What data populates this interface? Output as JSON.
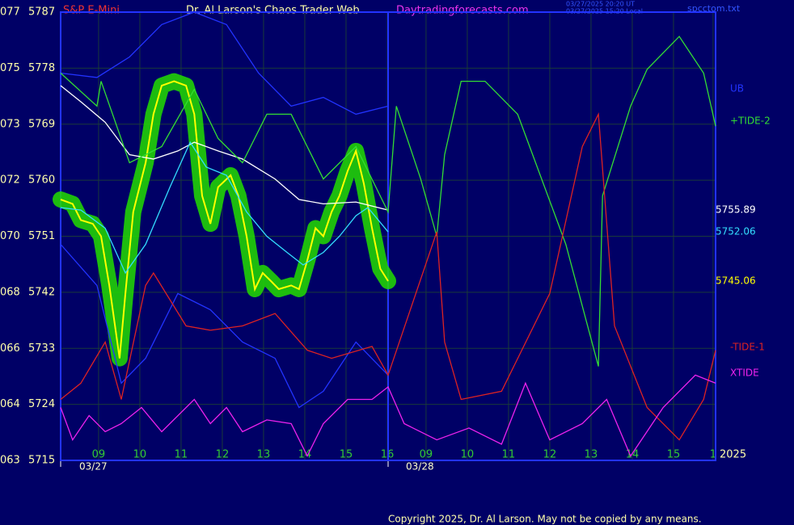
{
  "chart_data": {
    "type": "line",
    "header": {
      "symbol": "S&P E-Mini",
      "title": "Dr. Al Larson's Chaos Trader Web",
      "site": "Daytradingforecasts.com",
      "time_ut": "03/27/2025 20:20 UT",
      "time_local": "03/27/2025 15:20 Local",
      "file": "spcctom.txt"
    },
    "footer": "Copyright 2025, Dr. Al Larson. May not be copied by any means.",
    "year_label": "2025",
    "date_labels": [
      "03/27",
      "03/28"
    ],
    "xlim": [
      0,
      15.88
    ],
    "ylim": [
      5715,
      5787
    ],
    "yticks": [
      5787,
      5778,
      5769,
      5760,
      5751,
      5742,
      5733,
      5724,
      5715
    ],
    "ytick_codes": [
      "077",
      "075",
      "073",
      "072",
      "070",
      "068",
      "066",
      "064",
      "063"
    ],
    "xticks": [
      {
        "value": 0.92,
        "label": "09"
      },
      {
        "value": 1.92,
        "label": "10"
      },
      {
        "value": 2.92,
        "label": "11"
      },
      {
        "value": 3.92,
        "label": "12"
      },
      {
        "value": 4.92,
        "label": "13"
      },
      {
        "value": 5.92,
        "label": "14"
      },
      {
        "value": 6.92,
        "label": "15"
      },
      {
        "value": 7.92,
        "label": "16"
      },
      {
        "value": 8.86,
        "label": "09"
      },
      {
        "value": 9.86,
        "label": "10"
      },
      {
        "value": 10.86,
        "label": "11"
      },
      {
        "value": 11.86,
        "label": "12"
      },
      {
        "value": 12.86,
        "label": "13"
      },
      {
        "value": 13.86,
        "label": "14"
      },
      {
        "value": 14.86,
        "label": "15"
      },
      {
        "value": 15.82,
        "label": "1"
      }
    ],
    "grid": true,
    "series": [
      {
        "color": "#ffff00",
        "glow": "#22dd00",
        "last_label": "5745.06",
        "x": [
          0,
          0.29,
          0.49,
          0.78,
          0.98,
          1.18,
          1.43,
          1.57,
          1.76,
          2.06,
          2.25,
          2.45,
          2.75,
          3.04,
          3.24,
          3.43,
          3.63,
          3.82,
          4.12,
          4.31,
          4.51,
          4.71,
          4.9,
          5.1,
          5.29,
          5.59,
          5.78,
          5.98,
          6.18,
          6.37,
          6.57,
          6.76,
          6.96,
          7.16,
          7.35,
          7.55,
          7.75,
          7.94
        ],
        "values": [
          5756.9,
          5756.2,
          5753.6,
          5753.0,
          5751.0,
          5743.1,
          5731.4,
          5741.8,
          5754.9,
          5762.8,
          5770.6,
          5775.2,
          5775.9,
          5775.2,
          5770.6,
          5757.5,
          5753.0,
          5758.9,
          5760.8,
          5757.5,
          5751.0,
          5742.5,
          5745.1,
          5743.8,
          5742.5,
          5743.1,
          5742.5,
          5747.1,
          5752.3,
          5751.0,
          5754.9,
          5757.5,
          5761.5,
          5764.7,
          5759.5,
          5752.3,
          5745.8,
          5743.8
        ]
      },
      {
        "color": "#ffffff",
        "last_label": "5755.89",
        "x": [
          0,
          0.49,
          1.08,
          1.67,
          2.25,
          2.84,
          3.24,
          3.82,
          4.41,
          5.2,
          5.78,
          6.37,
          7.16,
          7.94
        ],
        "values": [
          5775.2,
          5772.6,
          5769.3,
          5764.1,
          5763.4,
          5764.7,
          5766.1,
          5764.7,
          5763.4,
          5760.2,
          5756.9,
          5756.2,
          5756.5,
          5755.2
        ]
      },
      {
        "color": "#33ddff",
        "last_label": "5752.06",
        "x": [
          0,
          0.49,
          1.08,
          1.57,
          2.06,
          2.65,
          3.14,
          3.53,
          4.02,
          4.51,
          5.0,
          5.49,
          5.88,
          6.37,
          6.76,
          7.16,
          7.45,
          7.94
        ],
        "values": [
          5755.6,
          5755.2,
          5752.3,
          5745.1,
          5749.7,
          5758.9,
          5766.1,
          5762.1,
          5760.8,
          5754.9,
          5751.0,
          5748.4,
          5746.4,
          5748.4,
          5751.0,
          5754.3,
          5755.6,
          5751.7
        ]
      },
      {
        "name": "UB",
        "color": "#2233ff",
        "x": [
          0,
          0.88,
          1.67,
          2.45,
          3.24,
          4.02,
          4.8,
          5.59,
          6.37,
          7.16,
          7.94
        ],
        "values": [
          5777.2,
          5776.5,
          5779.8,
          5785.0,
          5787.0,
          5785.0,
          5777.2,
          5771.9,
          5773.3,
          5770.6,
          5771.9
        ]
      },
      {
        "color": "#2233ff",
        "x": [
          0,
          0.88,
          1.47,
          2.06,
          2.84,
          3.63,
          4.41,
          5.2,
          5.78,
          6.37,
          7.16,
          7.94
        ],
        "values": [
          5749.7,
          5743.1,
          5727.4,
          5731.4,
          5741.8,
          5739.2,
          5734.0,
          5731.4,
          5723.5,
          5726.1,
          5734.0,
          5728.7
        ]
      },
      {
        "name": "+TIDE-2",
        "color": "#33dd33",
        "x": [
          0,
          0.88,
          0.98,
          1.67,
          2.45,
          3.24,
          3.82,
          4.41,
          5.0,
          5.59,
          6.37,
          7.16,
          7.94,
          8.14,
          8.73,
          9.12,
          9.31,
          9.71,
          10.29,
          11.08,
          12.25,
          13.04,
          13.14,
          13.82,
          14.22,
          15.0,
          15.59,
          15.88
        ],
        "values": [
          5777.2,
          5771.9,
          5775.9,
          5762.8,
          5765.4,
          5774.6,
          5766.7,
          5762.8,
          5770.6,
          5770.6,
          5760.2,
          5765.4,
          5754.9,
          5771.9,
          5760.2,
          5751.0,
          5764.1,
          5775.9,
          5775.9,
          5770.6,
          5749.7,
          5730.1,
          5757.5,
          5771.9,
          5777.8,
          5783.1,
          5777.2,
          5768.7
        ]
      },
      {
        "name": "-TIDE-1",
        "color": "#dd2222",
        "x": [
          0,
          0.49,
          1.08,
          1.47,
          2.06,
          2.25,
          3.04,
          3.63,
          4.41,
          5.2,
          5.98,
          6.57,
          7.55,
          7.94,
          9.12,
          9.31,
          9.71,
          10.69,
          11.86,
          12.65,
          13.04,
          13.43,
          14.22,
          15.0,
          15.59,
          15.88
        ],
        "values": [
          5724.8,
          5727.4,
          5734.0,
          5724.8,
          5743.1,
          5745.1,
          5736.6,
          5735.9,
          5736.6,
          5738.6,
          5732.7,
          5731.4,
          5733.3,
          5728.7,
          5751.7,
          5734.0,
          5724.8,
          5726.1,
          5741.8,
          5765.4,
          5770.6,
          5736.6,
          5723.5,
          5718.3,
          5724.8,
          5732.7
        ]
      },
      {
        "name": "XTIDE",
        "color": "#ee22ee",
        "x": [
          0,
          0.29,
          0.69,
          1.08,
          1.47,
          1.96,
          2.45,
          3.24,
          3.63,
          4.02,
          4.41,
          5.0,
          5.59,
          5.98,
          6.37,
          6.96,
          7.55,
          7.94,
          8.33,
          9.12,
          9.9,
          10.69,
          11.27,
          11.86,
          12.65,
          13.24,
          13.82,
          14.61,
          15.39,
          15.88
        ],
        "values": [
          5723.5,
          5718.3,
          5722.2,
          5719.6,
          5720.9,
          5723.5,
          5719.6,
          5724.8,
          5720.9,
          5723.5,
          5719.6,
          5721.5,
          5720.9,
          5715.7,
          5720.9,
          5724.8,
          5724.8,
          5726.8,
          5720.9,
          5718.3,
          5720.2,
          5717.6,
          5727.4,
          5718.3,
          5720.9,
          5724.8,
          5715.7,
          5723.5,
          5728.7,
          5727.4
        ]
      }
    ]
  }
}
